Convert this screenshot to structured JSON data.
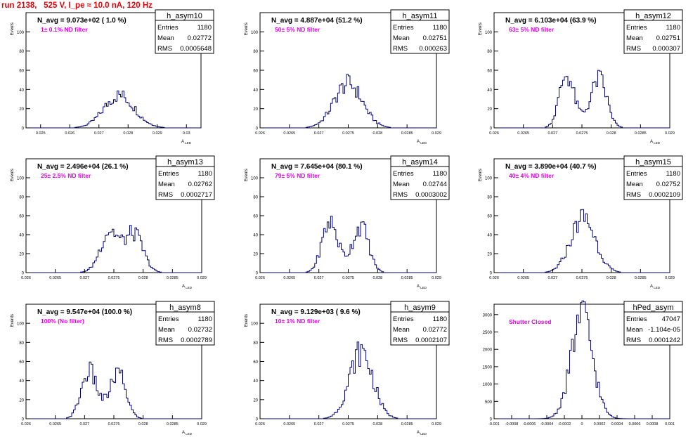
{
  "canvas": {
    "title": "run 2138,   525 V, I_pe ≈ 10.0 nA, 120 Hz"
  },
  "chart_data": [
    {
      "type": "bar",
      "name": "h_asym10",
      "n_avg": "N_avg = 9.073e+02 ( 1.0 %)",
      "filter": "1± 0.1% ND filter",
      "stats": {
        "Entries": "1180",
        "Mean": "0.02772",
        "RMS": "0.0005648"
      },
      "xlabel": "A_{LED}",
      "ylabel": "Events",
      "xlim": [
        0.0245,
        0.0305
      ],
      "ylim": [
        0,
        120
      ],
      "xticks": [
        "0.025",
        "0.026",
        "0.027",
        "0.028",
        "0.029",
        "0.03"
      ],
      "xtick_values": [
        0.025,
        0.026,
        0.027,
        0.028,
        0.029,
        0.03
      ],
      "yticks": [
        0,
        20,
        40,
        60,
        80,
        100
      ],
      "peaks": [
        [
          0.0277,
          0.00052,
          34
        ]
      ]
    },
    {
      "type": "bar",
      "name": "h_asym11",
      "n_avg": "N_avg = 4.887e+04 (51.2 %)",
      "filter": "50± 5% ND filter",
      "stats": {
        "Entries": "1180",
        "Mean": "0.02751",
        "RMS": "0.000263"
      },
      "xlabel": "A_{LED}",
      "ylabel": "Events",
      "xlim": [
        0.026,
        0.029
      ],
      "ylim": [
        0,
        120
      ],
      "xticks": [
        "0.026",
        "0.0265",
        "0.027",
        "0.0275",
        "0.028",
        "0.0285",
        "0.029"
      ],
      "xtick_values": [
        0.026,
        0.0265,
        0.027,
        0.0275,
        0.028,
        0.0285,
        0.029
      ],
      "yticks": [
        0,
        20,
        40,
        60,
        80,
        100
      ],
      "peaks": [
        [
          0.0275,
          0.00024,
          46
        ]
      ]
    },
    {
      "type": "bar",
      "name": "h_asym12",
      "n_avg": "N_avg = 6.103e+04 (63.9 %)",
      "filter": "63± 5% ND filter",
      "stats": {
        "Entries": "1180",
        "Mean": "0.02751",
        "RMS": "0.000307"
      },
      "xlabel": "A_{LED}",
      "ylabel": "Events",
      "xlim": [
        0.026,
        0.029
      ],
      "ylim": [
        0,
        120
      ],
      "xticks": [
        "0.026",
        "0.0265",
        "0.027",
        "0.0275",
        "0.028",
        "0.0285",
        "0.029"
      ],
      "xtick_values": [
        0.026,
        0.0265,
        0.027,
        0.0275,
        0.028,
        0.0285,
        0.029
      ],
      "yticks": [
        0,
        20,
        40,
        60,
        80,
        100
      ],
      "peaks": [
        [
          0.02723,
          0.00012,
          52
        ],
        [
          0.0278,
          0.00013,
          48
        ],
        [
          0.0275,
          0.0002,
          9
        ]
      ]
    },
    {
      "type": "bar",
      "name": "h_asym13",
      "n_avg": "N_avg = 2.496e+04 (26.1 %)",
      "filter": "25± 2.5% ND filter",
      "stats": {
        "Entries": "1180",
        "Mean": "0.02762",
        "RMS": "0.0002717"
      },
      "xlabel": "A_{LED}",
      "ylabel": "Events",
      "xlim": [
        0.026,
        0.029
      ],
      "ylim": [
        0,
        120
      ],
      "xticks": [
        "0.026",
        "0.0265",
        "0.027",
        "0.0275",
        "0.028",
        "0.0285",
        "0.029"
      ],
      "xtick_values": [
        0.026,
        0.0265,
        0.027,
        0.0275,
        0.028,
        0.0285,
        0.029
      ],
      "yticks": [
        0,
        20,
        40,
        60,
        80,
        100
      ],
      "peaks": [
        [
          0.02742,
          0.00015,
          38
        ],
        [
          0.02785,
          0.00015,
          36
        ],
        [
          0.0276,
          0.00025,
          8
        ]
      ]
    },
    {
      "type": "bar",
      "name": "h_asym14",
      "n_avg": "N_avg = 7.645e+04 (80.1 %)",
      "filter": "79± 5% ND filter",
      "stats": {
        "Entries": "1180",
        "Mean": "0.02744",
        "RMS": "0.0003002"
      },
      "xlabel": "A_{LED}",
      "ylabel": "Events",
      "xlim": [
        0.026,
        0.029
      ],
      "ylim": [
        0,
        120
      ],
      "xticks": [
        "0.026",
        "0.0265",
        "0.027",
        "0.0275",
        "0.028",
        "0.0285",
        "0.029"
      ],
      "xtick_values": [
        0.026,
        0.0265,
        0.027,
        0.0275,
        0.028,
        0.0285,
        0.029
      ],
      "yticks": [
        0,
        20,
        40,
        60,
        80,
        100
      ],
      "peaks": [
        [
          0.02718,
          0.00013,
          50
        ],
        [
          0.02772,
          0.00013,
          46
        ],
        [
          0.02745,
          0.0002,
          8
        ]
      ]
    },
    {
      "type": "bar",
      "name": "h_asym15",
      "n_avg": "N_avg = 3.890e+04 (40.7 %)",
      "filter": "40± 4% ND filter",
      "stats": {
        "Entries": "1180",
        "Mean": "0.02752",
        "RMS": "0.0002109"
      },
      "xlabel": "A_{LED}",
      "ylabel": "Events",
      "xlim": [
        0.026,
        0.029
      ],
      "ylim": [
        0,
        120
      ],
      "xticks": [
        "0.026",
        "0.0265",
        "0.027",
        "0.0275",
        "0.028",
        "0.0285",
        "0.029"
      ],
      "xtick_values": [
        0.026,
        0.0265,
        0.027,
        0.0275,
        0.028,
        0.0285,
        0.029
      ],
      "yticks": [
        0,
        20,
        40,
        60,
        80,
        100
      ],
      "peaks": [
        [
          0.02752,
          0.00021,
          58
        ]
      ]
    },
    {
      "type": "bar",
      "name": "h_asym8",
      "n_avg": "N_avg = 9.547e+04 (100.0 %)",
      "filter": "100% (No filter)",
      "stats": {
        "Entries": "1180",
        "Mean": "0.02732",
        "RMS": "0.0002789"
      },
      "xlabel": "A_{LED}",
      "ylabel": "Events",
      "xlim": [
        0.026,
        0.029
      ],
      "ylim": [
        0,
        120
      ],
      "xticks": [
        "0.026",
        "0.0265",
        "0.027",
        "0.0275",
        "0.028",
        "0.0285",
        "0.029"
      ],
      "xtick_values": [
        0.026,
        0.0265,
        0.027,
        0.0275,
        0.028,
        0.0285,
        0.029
      ],
      "yticks": [
        0,
        20,
        40,
        60,
        80,
        100
      ],
      "peaks": [
        [
          0.02707,
          0.00013,
          46
        ],
        [
          0.02758,
          0.00013,
          44
        ],
        [
          0.02732,
          0.0002,
          8
        ]
      ]
    },
    {
      "type": "bar",
      "name": "h_asym9",
      "n_avg": "N_avg = 9.129e+03 ( 9.6 %)",
      "filter": "10± 1% ND filter",
      "stats": {
        "Entries": "1180",
        "Mean": "0.02772",
        "RMS": "0.0002107"
      },
      "xlabel": "A_{LED}",
      "ylabel": "Events",
      "xlim": [
        0.026,
        0.029
      ],
      "ylim": [
        0,
        120
      ],
      "xticks": [
        "0.026",
        "0.0265",
        "0.027",
        "0.0275",
        "0.028",
        "0.0285",
        "0.029"
      ],
      "xtick_values": [
        0.026,
        0.0265,
        0.027,
        0.0275,
        0.028,
        0.0285,
        0.029
      ],
      "yticks": [
        0,
        20,
        40,
        60,
        80,
        100
      ],
      "peaks": [
        [
          0.02772,
          0.0002,
          70
        ]
      ]
    },
    {
      "type": "bar",
      "name": "hPed_asym",
      "n_avg": "",
      "filter": "Shutter Closed",
      "stats": {
        "Entries": "47047",
        "Mean": "-1.104e-05",
        "RMS": "0.0001242"
      },
      "xlabel": "",
      "ylabel": "",
      "xlim": [
        -0.001,
        0.001
      ],
      "ylim": [
        0,
        3300
      ],
      "xticks": [
        "-0.001",
        "-0.0008",
        "-0.0006",
        "-0.0004",
        "-0.0002",
        "0",
        "0.0002",
        "0.0004",
        "0.0006",
        "0.0008",
        "0.001"
      ],
      "xtick_values": [
        -0.001,
        -0.0008,
        -0.0006,
        -0.0004,
        -0.0002,
        0,
        0.0002,
        0.0004,
        0.0006,
        0.0008,
        0.001
      ],
      "yticks": [
        0,
        500,
        1000,
        1500,
        2000,
        2500,
        3000
      ],
      "peaks": [
        [
          0,
          0.000124,
          2950
        ]
      ]
    }
  ]
}
